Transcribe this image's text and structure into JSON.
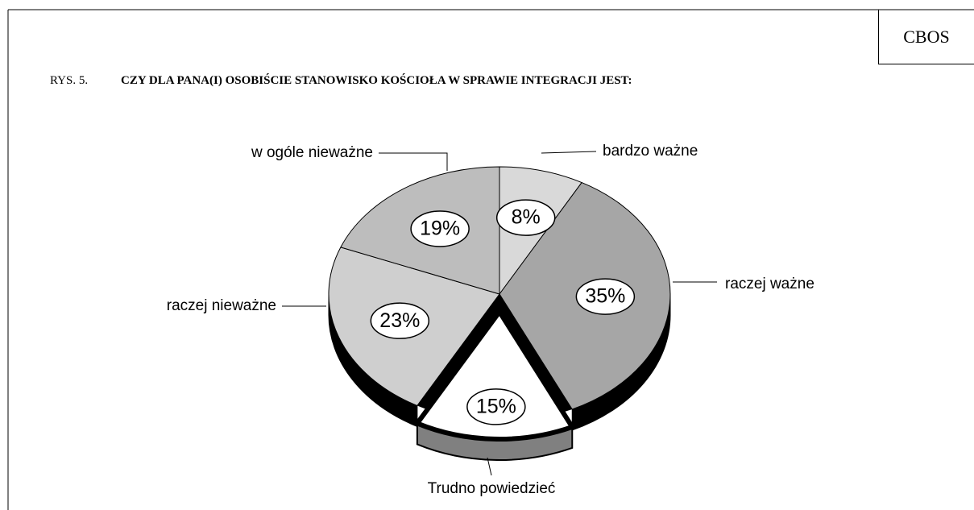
{
  "chart_data": {
    "type": "pie",
    "source": "CBOS",
    "figure_label": "RYS. 5.",
    "title": "CZY DLA PANA(I) OSOBIŚCIE STANOWISKO KOŚCIOŁA W SPRAWIE INTEGRACJI JEST:",
    "categories": [
      "bardzo ważne",
      "raczej ważne",
      "Trudno powiedzieć",
      "raczej nieważne",
      "w ogóle nieważne"
    ],
    "values": [
      8,
      35,
      15,
      23,
      19
    ],
    "value_labels": [
      "8%",
      "35%",
      "15%",
      "23%",
      "19%"
    ],
    "colors": [
      "#d9d9d9",
      "#a6a6a6",
      "#ffffff",
      "#cfcfcf",
      "#bdbdbd"
    ],
    "exploded": "Trudno powiedzieć"
  }
}
